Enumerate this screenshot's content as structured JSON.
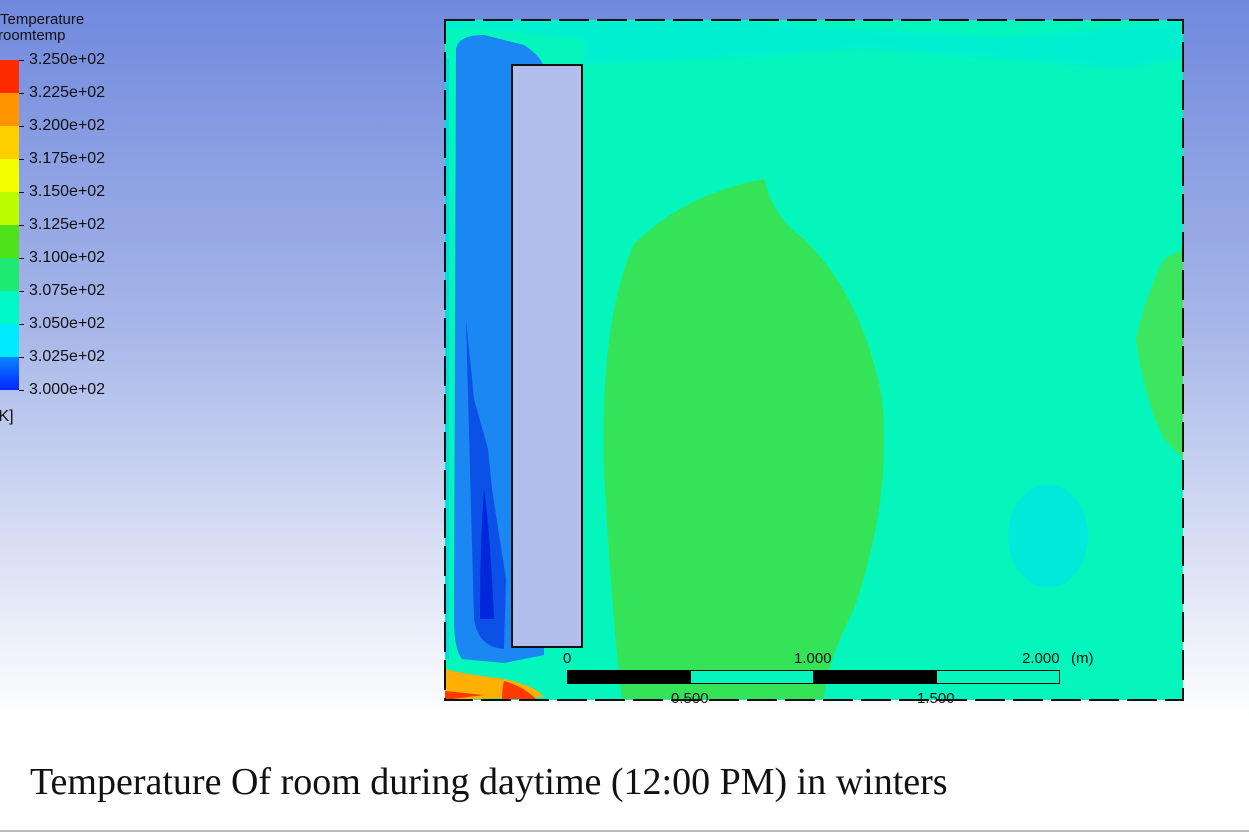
{
  "legend": {
    "title_line1": "Temperature",
    "title_line2": "roomtemp",
    "unit": "[K]",
    "levels": [
      "3.250e+02",
      "3.225e+02",
      "3.200e+02",
      "3.175e+02",
      "3.150e+02",
      "3.125e+02",
      "3.100e+02",
      "3.075e+02",
      "3.050e+02",
      "3.025e+02",
      "3.000e+02"
    ],
    "colors": [
      "#ff2b00",
      "#ff9400",
      "#ffcf00",
      "#f3ff00",
      "#b9ff00",
      "#4fe21a",
      "#1ee970",
      "#00f7c6",
      "#00ebff",
      "#0b85ff",
      "#0026ff"
    ]
  },
  "scale_bar": {
    "label_0": "0",
    "label_1": "1.000",
    "label_2": "2.000",
    "unit": "(m)",
    "label_05": "0.500",
    "label_15": "1.500"
  },
  "caption": "Temperature Of room during daytime (12:00 PM) in winters"
}
